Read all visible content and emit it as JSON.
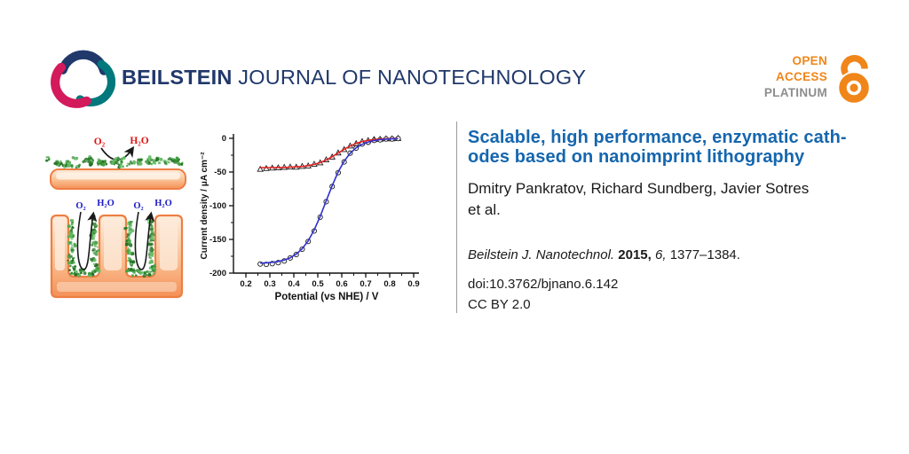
{
  "header": {
    "brand_bold": "BEILSTEIN",
    "brand_rest": " JOURNAL OF NANOTECHNOLOGY",
    "open_access": {
      "line1": "OPEN",
      "line2": "ACCESS",
      "line3": "PLATINUM"
    }
  },
  "colors": {
    "brand_navy": "#21386b",
    "logo_teal": "#00787c",
    "logo_crimson": "#d31a5b",
    "oa_orange": "#f08519",
    "oa_gray": "#8d8d8d",
    "title_blue": "#1566ae",
    "series_red": "#e42020",
    "series_blue": "#3030cf",
    "electrode_orange_stroke": "#ee7f44",
    "enzyme_green": "#3e9b3e"
  },
  "illustration": {
    "top": {
      "o2": "O₂",
      "h2o": "H₂O"
    },
    "bottom": {
      "o2_1": "O₂",
      "h2o_1": "H₂O",
      "o2_2": "O₂",
      "h2o_2": "H₂O"
    }
  },
  "chart_data": {
    "type": "line",
    "title": "",
    "xlabel": "Potential (vs NHE) / V",
    "ylabel": "Current density / μA cm⁻²",
    "xlim": [
      0.15,
      0.92
    ],
    "ylim": [
      -200,
      0
    ],
    "x_ticks": [
      0.2,
      0.3,
      0.4,
      0.5,
      0.6,
      0.7,
      0.8,
      0.9
    ],
    "y_ticks": [
      0,
      -50,
      -100,
      -150,
      -200
    ],
    "grid": false,
    "legend": "none",
    "series": [
      {
        "name": "planar-electrode-red-triangles",
        "line_color": "#e42020",
        "marker": "triangle",
        "x": [
          0.26,
          0.285,
          0.31,
          0.335,
          0.36,
          0.385,
          0.41,
          0.435,
          0.46,
          0.485,
          0.51,
          0.535,
          0.56,
          0.585,
          0.61,
          0.635,
          0.66,
          0.685,
          0.71,
          0.735,
          0.76,
          0.785,
          0.81,
          0.835
        ],
        "y_fit": [
          -43.5,
          -43.4,
          -43.4,
          -43.3,
          -43.1,
          -42.8,
          -42.4,
          -41.7,
          -40.5,
          -38.7,
          -36.0,
          -32.2,
          -27.3,
          -21.8,
          -16.2,
          -11.4,
          -7.5,
          -4.8,
          -3.0,
          -1.8,
          -1.1,
          -0.7,
          -0.4,
          -0.2
        ],
        "y_points": [
          -45.8,
          -44.6,
          -44.0,
          -43.6,
          -43.0,
          -42.5,
          -42.6,
          -41.5,
          -40.8,
          -38.4,
          -36.2,
          -31.8,
          -27.6,
          -21.5,
          -16.5,
          -11.2,
          -7.7,
          -4.6,
          -3.2,
          -1.6,
          -1.2,
          -0.5,
          -0.5,
          -0.1
        ]
      },
      {
        "name": "nanostructured-electrode-blue-circles",
        "line_color": "#3030cf",
        "marker": "circle",
        "x": [
          0.26,
          0.285,
          0.31,
          0.335,
          0.36,
          0.385,
          0.41,
          0.435,
          0.46,
          0.485,
          0.51,
          0.535,
          0.56,
          0.585,
          0.61,
          0.635,
          0.66,
          0.685,
          0.71,
          0.735,
          0.76,
          0.785,
          0.81,
          0.835
        ],
        "y_fit": [
          -185.2,
          -184.8,
          -184.0,
          -182.7,
          -180.5,
          -177.2,
          -171.9,
          -163.8,
          -152.1,
          -136.0,
          -115.8,
          -93.0,
          -70.2,
          -50.0,
          -33.9,
          -22.2,
          -14.1,
          -8.8,
          -5.5,
          -3.3,
          -2.0,
          -1.2,
          -0.8,
          -0.5
        ],
        "y_points": [
          -186.5,
          -187.0,
          -186.0,
          -184.5,
          -182.0,
          -177.5,
          -172.5,
          -164.5,
          -153.0,
          -137.5,
          -117.0,
          -94.0,
          -71.5,
          -51.0,
          -35.0,
          -22.0,
          -14.5,
          -8.5,
          -5.8,
          -3.0,
          -2.2,
          -1.0,
          -0.9,
          -0.3
        ]
      }
    ]
  },
  "paper": {
    "title_line1": "Scalable, high performance, enzymatic cath-",
    "title_line2": "odes based on nanoimprint lithography",
    "authors_line1": "Dmitry Pankratov, Richard Sundberg, Javier Sotres",
    "authors_line2": "et al.",
    "citation": {
      "journal": "Beilstein J. Nanotechnol.",
      "year": "2015,",
      "volume": "6,",
      "pages": "1377–1384."
    },
    "doi": "doi:10.3762/bjnano.6.142",
    "license": "CC BY 2.0"
  }
}
